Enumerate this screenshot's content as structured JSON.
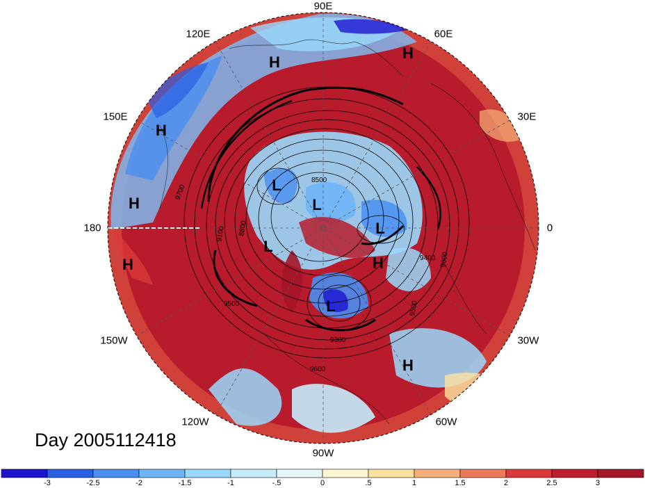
{
  "title": "Day 2005112418",
  "longitude_labels": {
    "deg90e": "90E",
    "deg60e": "60E",
    "deg30e": "30E",
    "deg0": "0",
    "deg30w": "30W",
    "deg60w": "60W",
    "deg90w": "90W",
    "deg120w": "120W",
    "deg150w": "150W",
    "deg180": "180",
    "deg150e": "150E",
    "deg120e": "120E"
  },
  "pressure_centers": [
    "H",
    "H",
    "H",
    "H",
    "L",
    "L",
    "L",
    "L",
    "L",
    "H",
    "H",
    "H"
  ],
  "contour_labels": [
    "8500",
    "9700",
    "9100",
    "8800",
    "9400",
    "9500",
    "9600",
    "9300",
    "9600",
    "9500"
  ],
  "colorbar": {
    "ticks": [
      "-3",
      "-2.5",
      "-2",
      "-1.5",
      "-1",
      "-.5",
      "0",
      ".5",
      "1",
      "1.5",
      "2",
      "2.5",
      "3"
    ],
    "colors": [
      "#1c14cf",
      "#2b5fe3",
      "#4a8ef0",
      "#6fb4f7",
      "#99d8fb",
      "#c4ecfb",
      "#e6f7fa",
      "#fdf6d0",
      "#fbe1a0",
      "#f6b07a",
      "#ec7a5a",
      "#db3a3a",
      "#bf1e2d",
      "#a41628"
    ]
  }
}
